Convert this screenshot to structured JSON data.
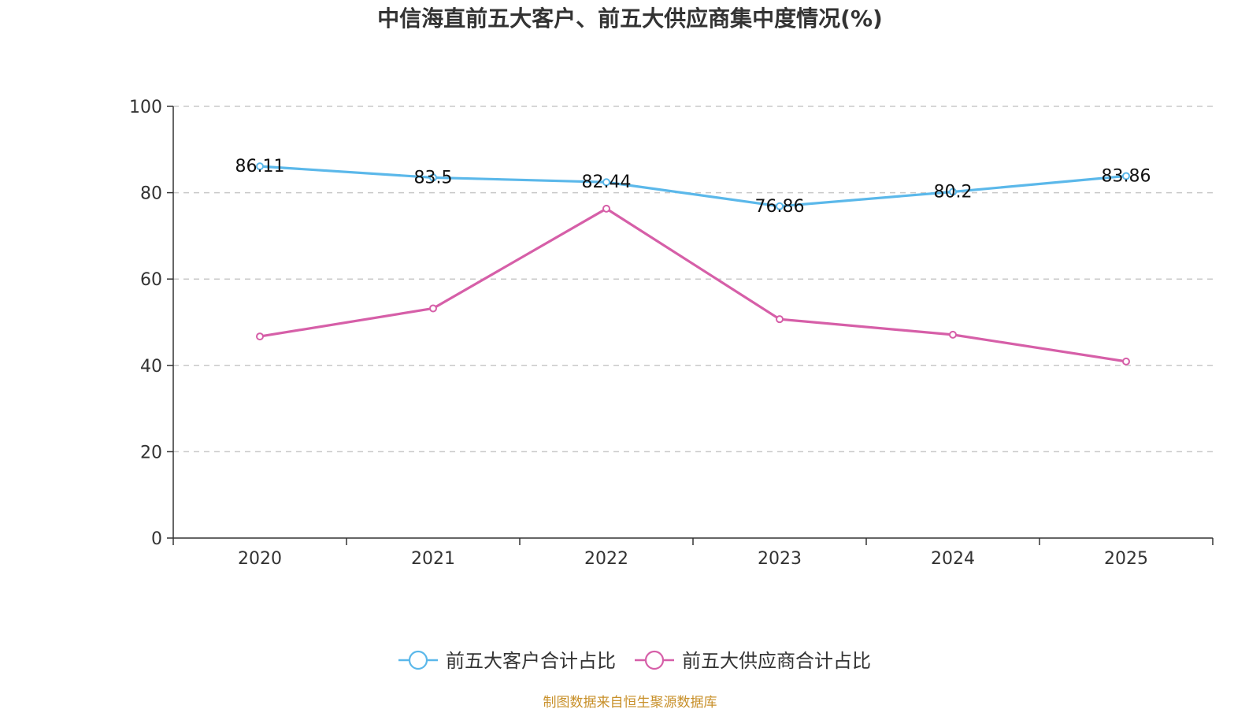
{
  "chart_data": {
    "type": "line",
    "title": "中信海直前五大客户、前五大供应商集中度情况(%)",
    "categories": [
      "2020",
      "2021",
      "2022",
      "2023",
      "2024",
      "2025"
    ],
    "ylim": [
      0,
      100
    ],
    "yticks": [
      0,
      20,
      40,
      60,
      80,
      100
    ],
    "grid": true,
    "legend_position": "bottom",
    "series": [
      {
        "name": "前五大客户合计占比",
        "color": "#5bb8ea",
        "values": [
          86.11,
          83.5,
          82.44,
          76.86,
          80.2,
          83.86
        ],
        "labels": [
          "86.11",
          "83.5",
          "82.44",
          "76.86",
          "80.2",
          "83.86"
        ],
        "show_labels": true
      },
      {
        "name": "前五大供应商合计占比",
        "color": "#d65fa8",
        "values": [
          46.7,
          53.2,
          76.3,
          50.7,
          47.1,
          40.9
        ],
        "show_labels": false
      }
    ]
  },
  "source": "制图数据来自恒生聚源数据库"
}
